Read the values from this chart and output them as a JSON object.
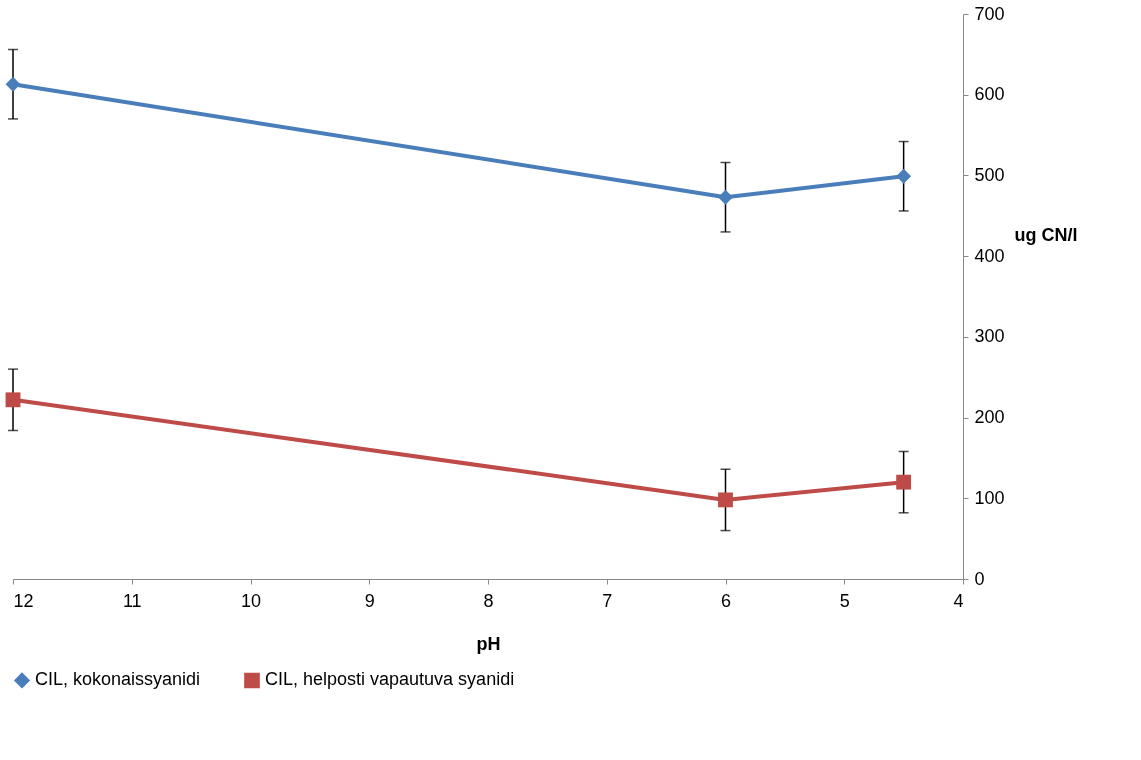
{
  "chart_data": {
    "type": "line",
    "xlabel": "pH",
    "ylabel": "ug CN/l",
    "x": [
      12,
      6,
      4.5
    ],
    "xlim": [
      12,
      4
    ],
    "xticks": [
      12,
      11,
      10,
      9,
      8,
      7,
      6,
      5,
      4
    ],
    "ylim": [
      0,
      700
    ],
    "yticks": [
      0,
      100,
      200,
      300,
      400,
      500,
      600,
      700
    ],
    "series": [
      {
        "name": "CIL, kokonaissyanidi",
        "color": "#4a7ebb",
        "marker": "diamond",
        "values": [
          613,
          473,
          499
        ],
        "errors": [
          43,
          43,
          43
        ]
      },
      {
        "name": "CIL, helposti vapautuva syanidi",
        "color": "#be4b48",
        "marker": "square",
        "values": [
          222,
          98,
          120
        ],
        "errors": [
          38,
          38,
          38
        ]
      }
    ],
    "grid": false,
    "legend": "bottom",
    "line_style": "solid"
  }
}
